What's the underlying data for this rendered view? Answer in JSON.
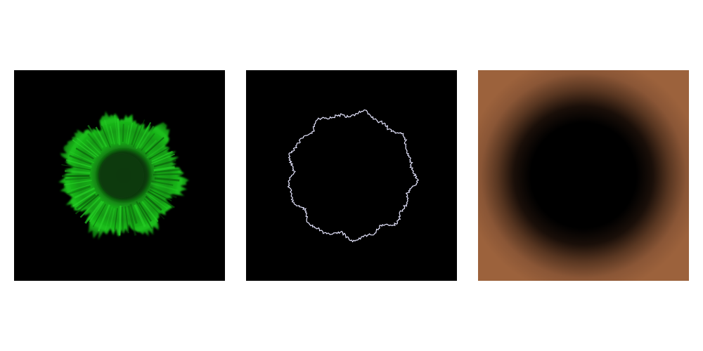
{
  "figure": {
    "background_color": "#ffffff",
    "panels": [
      {
        "id": "colony-fluorescence",
        "kind": "green fluorescent colony on black background",
        "background_color": "#000000",
        "colors": {
          "core": "#0e3a0e",
          "ring": "#16a016",
          "edge": "#22d422"
        }
      },
      {
        "id": "colony-boundary",
        "kind": "thin white irregular boundary trace on black background",
        "background_color": "#000000",
        "colors": {
          "outline": "#e6e6ff"
        }
      },
      {
        "id": "distance-map",
        "kind": "copper colormap distance field, dark center",
        "background_color": "#9c623c",
        "colors": {
          "outer": "#9c623c",
          "center": "#000000"
        }
      }
    ]
  }
}
